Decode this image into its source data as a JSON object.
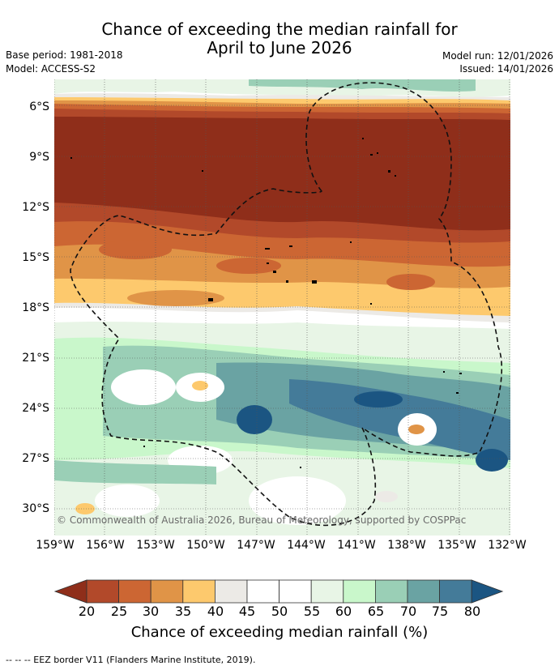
{
  "title": {
    "line1": "Chance of exceeding the median rainfall for",
    "line2": "April to June 2026"
  },
  "meta": {
    "base_period": "Base period: 1981-2018",
    "model": "Model: ACCESS-S2",
    "model_run": "Model run: 12/01/2026",
    "issued": "Issued: 14/01/2026"
  },
  "map": {
    "lat_labels": [
      "6°S",
      "9°S",
      "12°S",
      "15°S",
      "18°S",
      "21°S",
      "24°S",
      "27°S",
      "30°S"
    ],
    "lon_labels": [
      "159°W",
      "156°W",
      "153°W",
      "150°W",
      "147°W",
      "144°W",
      "141°W",
      "138°W",
      "135°W",
      "132°W"
    ],
    "copyright": "© Commonwealth of Australia 2026, Bureau of Meteorology, supported by COSPPac"
  },
  "colorbar": {
    "title": "Chance of exceeding median rainfall (%)",
    "tick_labels": [
      "20",
      "25",
      "30",
      "35",
      "40",
      "45",
      "50",
      "55",
      "60",
      "65",
      "70",
      "75",
      "80"
    ],
    "colors": [
      "#8f2e1a",
      "#b2492a",
      "#cc6633",
      "#e09447",
      "#fdc96d",
      "#eceae6",
      "#ffffff",
      "#ffffff",
      "#e8f5e6",
      "#c9f7cb",
      "#9acfb6",
      "#6aa3a3",
      "#447b99",
      "#1b5582"
    ]
  },
  "footer": "--  --  -- EEZ border V11 (Flanders Marine Institute, 2019)."
}
